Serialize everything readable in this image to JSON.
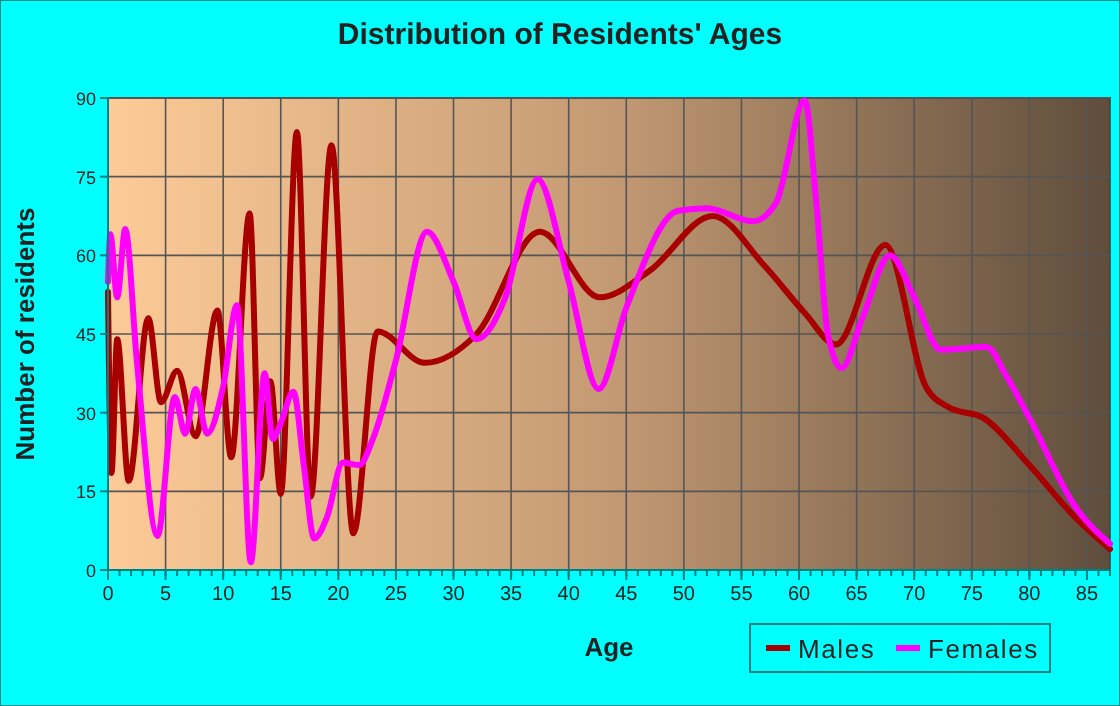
{
  "chart_data": {
    "type": "line",
    "title": "Distribution of Residents' Ages",
    "xlabel": "Age",
    "ylabel": "Number of residents",
    "xlim": [
      0,
      87
    ],
    "xticks": [
      0,
      5,
      10,
      15,
      20,
      25,
      30,
      35,
      40,
      45,
      50,
      55,
      60,
      65,
      70,
      75,
      80,
      85
    ],
    "ylim": [
      0,
      90
    ],
    "yticks": [
      0,
      15,
      30,
      45,
      60,
      75,
      90
    ],
    "grid": true,
    "legend": "bottom",
    "marker": "none",
    "series": [
      {
        "name": "Males",
        "color": "#a80000",
        "x": [
          0,
          0.3,
          0.8,
          1.8,
          3.5,
          4.6,
          6,
          7.6,
          9.5,
          10.7,
          12.3,
          13.2,
          14.1,
          15,
          16.4,
          17.6,
          19.4,
          21.3,
          23.4,
          27.5,
          32,
          37.5,
          42.7,
          47,
          52.5,
          57,
          60.5,
          63.2,
          67.5,
          71,
          73,
          76,
          80,
          84,
          87
        ],
        "values": [
          53,
          18.5,
          44,
          17,
          48,
          32,
          38,
          25.5,
          49.5,
          21.5,
          68,
          17.5,
          36,
          14.5,
          83.5,
          14,
          81,
          7,
          45.5,
          39.5,
          45,
          64.5,
          52,
          57,
          67.5,
          58,
          49,
          43,
          62,
          35,
          31,
          29,
          20,
          10,
          4
        ]
      },
      {
        "name": "Females",
        "color": "#ff00ff",
        "x": [
          0,
          0.2,
          0.8,
          1.5,
          2.5,
          4.3,
          5.8,
          6.7,
          7.6,
          8.6,
          10,
          11.2,
          12.4,
          13.6,
          14.3,
          15,
          16.1,
          17,
          17.9,
          19,
          20.4,
          21.8,
          23,
          25,
          27.7,
          30,
          32,
          34.5,
          37.3,
          40,
          42.6,
          45,
          49.5,
          52,
          56,
          58,
          60.5,
          61.5,
          62.5,
          63.7,
          65.5,
          67.9,
          70,
          72.3,
          76.3,
          78,
          80,
          84,
          87
        ],
        "values": [
          55,
          64,
          52,
          65,
          40,
          6.5,
          33,
          26,
          34.5,
          26,
          35,
          50.5,
          1.5,
          37.5,
          25,
          28,
          34,
          20,
          6,
          10,
          20.5,
          20,
          25,
          40,
          64.5,
          55,
          44,
          52,
          74.5,
          55,
          34.5,
          50,
          68.5,
          69,
          66.5,
          70,
          89.5,
          70,
          45,
          38.5,
          48,
          60,
          52,
          42,
          42.5,
          37,
          29,
          12,
          5
        ]
      }
    ]
  }
}
